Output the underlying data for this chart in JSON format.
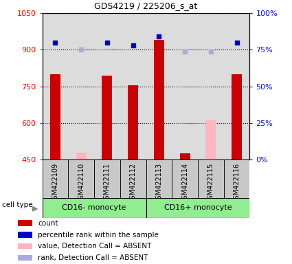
{
  "title": "GDS4219 / 225206_s_at",
  "samples": [
    "GSM422109",
    "GSM422110",
    "GSM422111",
    "GSM422112",
    "GSM422113",
    "GSM422114",
    "GSM422115",
    "GSM422116"
  ],
  "bar_values": [
    800,
    null,
    795,
    755,
    940,
    475,
    null,
    800
  ],
  "bar_absent_values": [
    null,
    480,
    null,
    null,
    null,
    null,
    610,
    null
  ],
  "percentile_values": [
    80,
    null,
    80,
    78,
    84,
    null,
    null,
    80
  ],
  "percentile_absent_values": [
    null,
    75,
    null,
    null,
    null,
    74,
    74,
    null
  ],
  "ylim_left": [
    450,
    1050
  ],
  "ylim_right": [
    0,
    100
  ],
  "yticks_left": [
    450,
    600,
    750,
    900,
    1050
  ],
  "yticks_right": [
    0,
    25,
    50,
    75,
    100
  ],
  "ytick_labels_right": [
    "0%",
    "25%",
    "50%",
    "75%",
    "100%"
  ],
  "group1_label": "CD16- monocyte",
  "group2_label": "CD16+ monocyte",
  "group1_indices": [
    0,
    1,
    2,
    3
  ],
  "group2_indices": [
    4,
    5,
    6,
    7
  ],
  "cell_type_label": "cell type",
  "legend_labels": [
    "count",
    "percentile rank within the sample",
    "value, Detection Call = ABSENT",
    "rank, Detection Call = ABSENT"
  ],
  "legend_colors": [
    "#CC0000",
    "#0000CC",
    "#FFB6C1",
    "#AAAADD"
  ],
  "plot_bg_color": "#DCDCDC",
  "xtick_bg_color": "#C8C8C8",
  "group_bg_color": "#90EE90",
  "bar_color_present": "#CC0000",
  "bar_color_absent": "#FFB6C1",
  "dot_color_present": "#0000CC",
  "dot_color_absent": "#AAAADD",
  "bar_width": 0.4
}
